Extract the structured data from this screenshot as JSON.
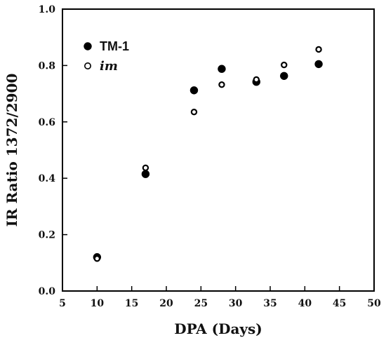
{
  "chart_data": {
    "type": "scatter",
    "title": "",
    "xlabel": "DPA (Days)",
    "ylabel": "IR Ratio 1372/2900",
    "xlim": [
      5,
      50
    ],
    "ylim": [
      0.0,
      1.0
    ],
    "x_ticks": [
      "5",
      "10",
      "15",
      "20",
      "25",
      "30",
      "35",
      "40",
      "45",
      "50"
    ],
    "y_ticks": [
      "0.0",
      "0.2",
      "0.4",
      "0.6",
      "0.8",
      "1.0"
    ],
    "grid": false,
    "legend_position": "top-left",
    "series": [
      {
        "name": "TM-1",
        "marker": "filled-circle",
        "color": "#000000",
        "points": [
          {
            "x": 10,
            "y": 0.12
          },
          {
            "x": 17,
            "y": 0.415
          },
          {
            "x": 24,
            "y": 0.712
          },
          {
            "x": 28,
            "y": 0.788
          },
          {
            "x": 33,
            "y": 0.742
          },
          {
            "x": 37,
            "y": 0.763
          },
          {
            "x": 42,
            "y": 0.805
          }
        ]
      },
      {
        "name": "im",
        "marker": "open-circle",
        "color": "#000000",
        "points": [
          {
            "x": 10,
            "y": 0.115
          },
          {
            "x": 17,
            "y": 0.437
          },
          {
            "x": 24,
            "y": 0.635
          },
          {
            "x": 28,
            "y": 0.732
          },
          {
            "x": 33,
            "y": 0.75
          },
          {
            "x": 37,
            "y": 0.802
          },
          {
            "x": 42,
            "y": 0.857
          }
        ]
      }
    ]
  }
}
